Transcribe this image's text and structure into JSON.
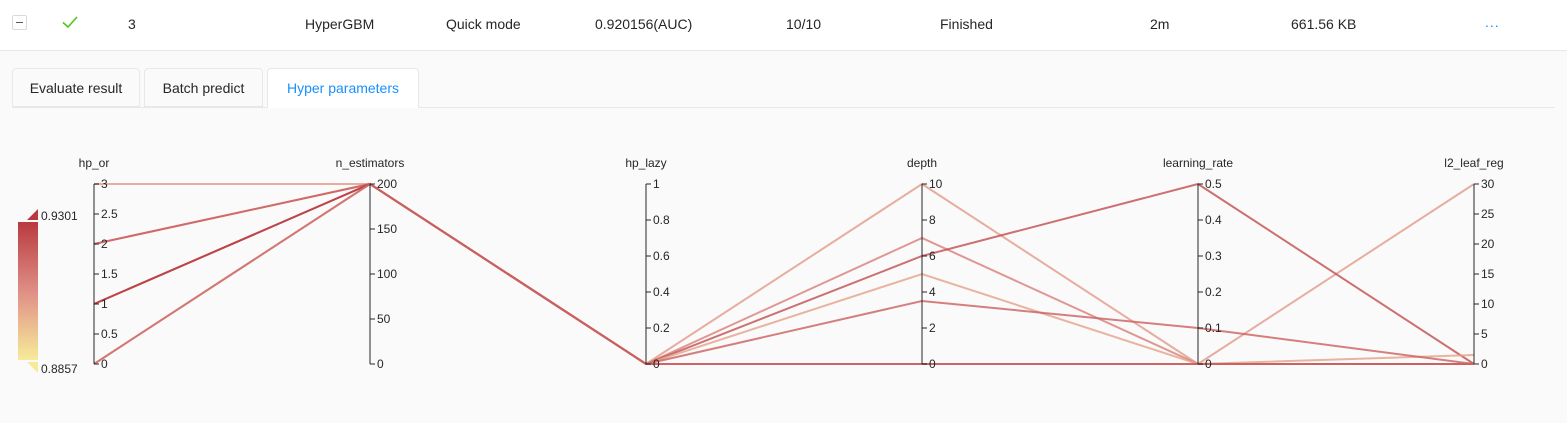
{
  "row": {
    "id": "3",
    "framework": "HyperGBM",
    "mode": "Quick mode",
    "score": "0.920156(AUC)",
    "trials": "10/10",
    "status": "Finished",
    "duration": "2m",
    "size": "661.56 KB",
    "more": "..."
  },
  "icons": {
    "collapse": "minus-square-icon",
    "status": "check-icon"
  },
  "colors": {
    "accent": "#1890ff",
    "success": "#52c41a",
    "high": "#b83a3f",
    "low": "#f7eb9a"
  },
  "tabs": [
    {
      "label": "Evaluate result",
      "active": false
    },
    {
      "label": "Batch predict",
      "active": false
    },
    {
      "label": "Hyper parameters",
      "active": true
    }
  ],
  "chart_data": {
    "type": "parallel_coordinates",
    "axes": [
      {
        "name": "hp_or",
        "min": 0,
        "max": 3,
        "ticks": [
          "0",
          "0.5",
          "1",
          "1.5",
          "2",
          "2.5",
          "3"
        ],
        "tick_values": [
          0,
          0.5,
          1,
          1.5,
          2,
          2.5,
          3
        ]
      },
      {
        "name": "n_estimators",
        "min": 0,
        "max": 200,
        "ticks": [
          "0",
          "50",
          "100",
          "150",
          "200"
        ],
        "tick_values": [
          0,
          50,
          100,
          150,
          200
        ]
      },
      {
        "name": "hp_lazy",
        "min": 0,
        "max": 1,
        "ticks": [
          "0",
          "0.2",
          "0.4",
          "0.6",
          "0.8",
          "1"
        ],
        "tick_values": [
          0,
          0.2,
          0.4,
          0.6,
          0.8,
          1
        ]
      },
      {
        "name": "depth",
        "min": 0,
        "max": 10,
        "ticks": [
          "0",
          "2",
          "4",
          "6",
          "8",
          "10"
        ],
        "tick_values": [
          0,
          2,
          4,
          6,
          8,
          10
        ]
      },
      {
        "name": "learning_rate",
        "min": 0,
        "max": 0.5,
        "ticks": [
          "0",
          "0.1",
          "0.2",
          "0.3",
          "0.4",
          "0.5"
        ],
        "tick_values": [
          0,
          0.1,
          0.2,
          0.3,
          0.4,
          0.5
        ]
      },
      {
        "name": "l2_leaf_reg",
        "min": 0,
        "max": 30,
        "ticks": [
          "0",
          "5",
          "10",
          "15",
          "20",
          "25",
          "30"
        ],
        "tick_values": [
          0,
          5,
          10,
          15,
          20,
          25,
          30
        ]
      }
    ],
    "colorbar": {
      "max_label": "0.9301",
      "min_label": "0.8857",
      "max": 0.9301,
      "min": 0.8857
    },
    "lines": [
      {
        "values": [
          3,
          200,
          0,
          10,
          0,
          30
        ],
        "score": 0.905
      },
      {
        "values": [
          2,
          200,
          0,
          7,
          0,
          0
        ],
        "score": 0.912
      },
      {
        "values": [
          1,
          200,
          0,
          6,
          0.5,
          0
        ],
        "score": 0.925
      },
      {
        "values": [
          0,
          200,
          0,
          5,
          0,
          1.5
        ],
        "score": 0.903
      },
      {
        "values": [
          2,
          200,
          0,
          3.5,
          0.1,
          0
        ],
        "score": 0.92
      },
      {
        "values": [
          1,
          200,
          0,
          0,
          0,
          0
        ],
        "score": 0.93
      },
      {
        "values": [
          0,
          200,
          0,
          0,
          0,
          0
        ],
        "score": 0.918
      }
    ]
  }
}
